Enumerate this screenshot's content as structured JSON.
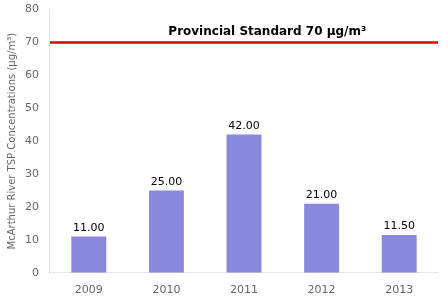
{
  "chart_data": {
    "type": "bar",
    "categories": [
      "2009",
      "2010",
      "2011",
      "2012",
      "2013"
    ],
    "values": [
      11.0,
      25.0,
      42.0,
      21.0,
      11.5
    ],
    "value_labels": [
      "11.00",
      "25.00",
      "42.00",
      "21.00",
      "11.50"
    ],
    "data_labels": true,
    "color": "#8888dd",
    "ylabel": "McArthur River TSP Concentrations (μg/m³)",
    "ylim": [
      0,
      80
    ],
    "yticks": [
      0,
      10,
      20,
      30,
      40,
      50,
      60,
      70,
      80
    ],
    "grid": false,
    "reference_line": {
      "value": 70,
      "label": "Provincial Standard 70 μg/m³",
      "color": "#dd0000"
    }
  }
}
